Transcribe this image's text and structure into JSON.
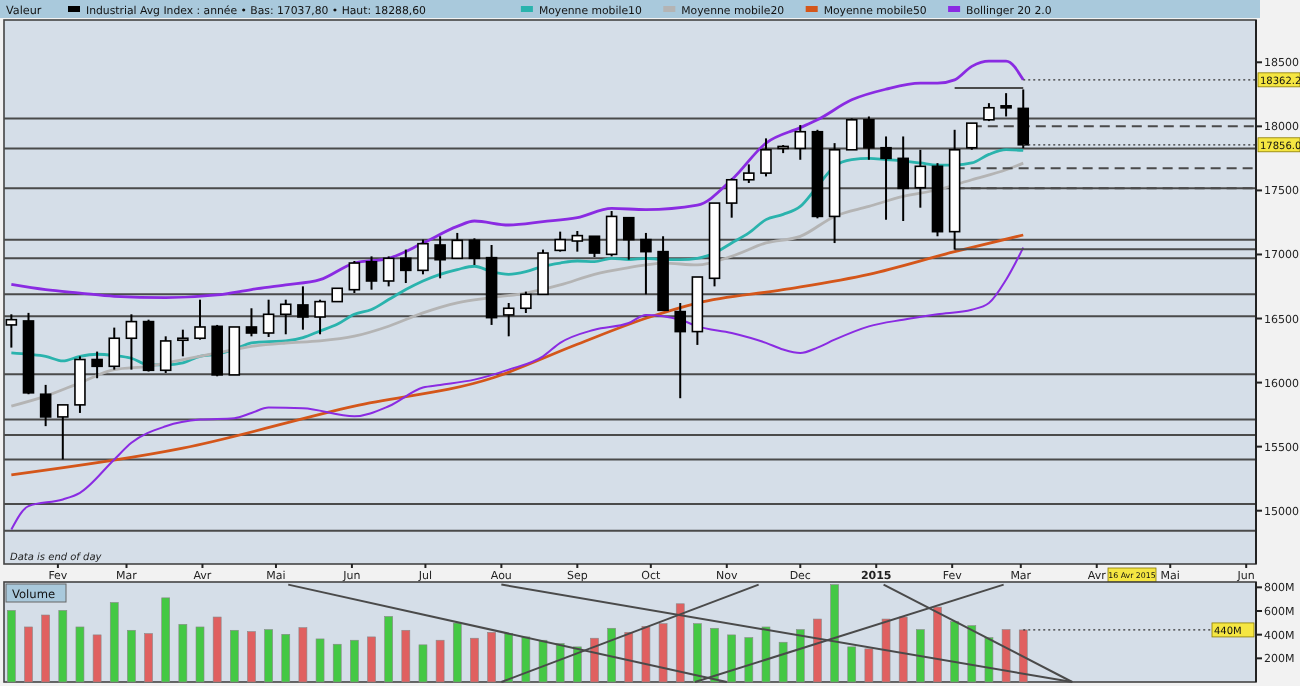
{
  "chart_data": [
    {
      "type": "candlestick",
      "title": "Valeur",
      "legend": "top",
      "x": [
        "2014-01-13",
        "2014-01-20",
        "2014-01-27",
        "2014-02-03",
        "2014-02-10",
        "2014-02-17",
        "2014-02-24",
        "2014-03-03",
        "2014-03-10",
        "2014-03-17",
        "2014-03-24",
        "2014-03-31",
        "2014-04-07",
        "2014-04-14",
        "2014-04-21",
        "2014-04-28",
        "2014-05-05",
        "2014-05-12",
        "2014-05-19",
        "2014-05-26",
        "2014-06-02",
        "2014-06-09",
        "2014-06-16",
        "2014-06-23",
        "2014-06-30",
        "2014-07-07",
        "2014-07-14",
        "2014-07-21",
        "2014-07-28",
        "2014-08-04",
        "2014-08-11",
        "2014-08-18",
        "2014-08-25",
        "2014-09-01",
        "2014-09-08",
        "2014-09-15",
        "2014-09-22",
        "2014-09-29",
        "2014-10-06",
        "2014-10-13",
        "2014-10-20",
        "2014-10-27",
        "2014-11-03",
        "2014-11-10",
        "2014-11-17",
        "2014-11-24",
        "2014-12-01",
        "2014-12-08",
        "2014-12-15",
        "2014-12-22",
        "2014-12-29",
        "2015-01-05",
        "2015-01-12",
        "2015-01-19",
        "2015-01-26",
        "2015-02-02",
        "2015-02-09",
        "2015-02-16",
        "2015-02-23",
        "2015-03-02"
      ],
      "xlim": [
        "2014-01-10",
        "2015-06-05"
      ],
      "xticks": [
        {
          "value": "2014-02-01",
          "label": "Fev"
        },
        {
          "value": "2014-03-01",
          "label": "Mar"
        },
        {
          "value": "2014-04-01",
          "label": "Avr"
        },
        {
          "value": "2014-05-01",
          "label": "Mai"
        },
        {
          "value": "2014-06-01",
          "label": "Jun"
        },
        {
          "value": "2014-07-01",
          "label": "Jul"
        },
        {
          "value": "2014-08-01",
          "label": "Aou"
        },
        {
          "value": "2014-09-01",
          "label": "Sep"
        },
        {
          "value": "2014-10-01",
          "label": "Oct"
        },
        {
          "value": "2014-11-01",
          "label": "Nov"
        },
        {
          "value": "2014-12-01",
          "label": "Dec"
        },
        {
          "value": "2015-01-01",
          "label": "2015"
        },
        {
          "value": "2015-02-01",
          "label": "Fev"
        },
        {
          "value": "2015-03-01",
          "label": "Mar"
        },
        {
          "value": "2015-04-01",
          "label": "Avr"
        },
        {
          "value": "2015-05-01",
          "label": "Mai"
        },
        {
          "value": "2015-06-01",
          "label": "Jun"
        }
      ],
      "ylim": [
        14584,
        18830
      ],
      "yticks": [
        15000,
        15500,
        16000,
        16500,
        17000,
        17500,
        18000,
        18500
      ],
      "series": [
        {
          "name": "Industrial Avg Index : année • Bas: 17037,80 • Haut: 18288,60",
          "color": "#000000",
          "ohlc": [
            [
              16450,
              16533,
              16273,
              16491
            ],
            [
              16481,
              16544,
              15909,
              15920
            ],
            [
              15909,
              15982,
              15660,
              15732
            ],
            [
              15732,
              15826,
              15400,
              15826
            ],
            [
              15826,
              16205,
              15763,
              16180
            ],
            [
              16180,
              16242,
              16034,
              16127
            ],
            [
              16127,
              16429,
              16101,
              16346
            ],
            [
              16346,
              16533,
              16101,
              16476
            ],
            [
              16476,
              16491,
              16086,
              16096
            ],
            [
              16096,
              16361,
              16075,
              16325
            ],
            [
              16335,
              16413,
              16205,
              16346
            ],
            [
              16346,
              16647,
              16335,
              16434
            ],
            [
              16439,
              16450,
              16049,
              16060
            ],
            [
              16060,
              16434,
              16060,
              16434
            ],
            [
              16434,
              16580,
              16361,
              16387
            ],
            [
              16387,
              16647,
              16356,
              16533
            ],
            [
              16533,
              16647,
              16377,
              16611
            ],
            [
              16606,
              16751,
              16413,
              16512
            ],
            [
              16512,
              16647,
              16377,
              16632
            ],
            [
              16632,
              16736,
              16632,
              16736
            ],
            [
              16725,
              16949,
              16699,
              16933
            ],
            [
              16943,
              16985,
              16725,
              16793
            ],
            [
              16793,
              16985,
              16751,
              16970
            ],
            [
              16970,
              17038,
              16777,
              16876
            ],
            [
              16876,
              17116,
              16845,
              17084
            ],
            [
              17074,
              17142,
              16814,
              16959
            ],
            [
              16970,
              17168,
              16970,
              17110
            ],
            [
              17110,
              17126,
              16918,
              16970
            ],
            [
              16975,
              17074,
              16450,
              16507
            ],
            [
              16528,
              16621,
              16361,
              16580
            ],
            [
              16580,
              16710,
              16543,
              16689
            ],
            [
              16689,
              17038,
              16689,
              17011
            ],
            [
              17032,
              17178,
              17022,
              17116
            ],
            [
              17105,
              17183,
              17022,
              17147
            ],
            [
              17142,
              17142,
              16980,
              17011
            ],
            [
              17001,
              17339,
              16985,
              17297
            ],
            [
              17287,
              17287,
              16959,
              17116
            ],
            [
              17116,
              17168,
              16689,
              17022
            ],
            [
              17022,
              17142,
              16564,
              16564
            ],
            [
              16554,
              16621,
              15878,
              16398
            ],
            [
              16398,
              16824,
              16294,
              16824
            ],
            [
              16814,
              17401,
              16751,
              17401
            ],
            [
              17401,
              17594,
              17287,
              17583
            ],
            [
              17583,
              17703,
              17558,
              17635
            ],
            [
              17635,
              17906,
              17609,
              17817
            ],
            [
              17833,
              17854,
              17791,
              17843
            ],
            [
              17828,
              18010,
              17739,
              17958
            ],
            [
              17958,
              17973,
              17282,
              17297
            ],
            [
              17297,
              17869,
              17089,
              17817
            ],
            [
              17817,
              18062,
              17817,
              18051
            ],
            [
              18051,
              18077,
              17739,
              17833
            ],
            [
              17833,
              17921,
              17271,
              17750
            ],
            [
              17750,
              17921,
              17261,
              17516
            ],
            [
              17521,
              17817,
              17365,
              17688
            ],
            [
              17688,
              17713,
              17142,
              17178
            ],
            [
              17178,
              17973,
              17038,
              17817
            ],
            [
              17833,
              18025,
              17817,
              18025
            ],
            [
              18051,
              18181,
              18041,
              18145
            ],
            [
              18160,
              18259,
              18077,
              18150
            ],
            [
              18140,
              18288,
              17830,
              17856
            ]
          ]
        },
        {
          "type": "line",
          "name": "Moyenne mobile10",
          "color": "#2ab3ad",
          "values": [
            16232,
            16221,
            16205,
            16169,
            16205,
            16221,
            16211,
            16190,
            16138,
            16138,
            16154,
            16205,
            16221,
            16258,
            16310,
            16320,
            16325,
            16351,
            16403,
            16455,
            16533,
            16570,
            16648,
            16726,
            16793,
            16845,
            16882,
            16908,
            16866,
            16845,
            16866,
            16908,
            16933,
            16949,
            16944,
            16970,
            16960,
            16970,
            16960,
            16960,
            16970,
            17012,
            17090,
            17168,
            17272,
            17313,
            17375,
            17532,
            17688,
            17740,
            17750,
            17740,
            17729,
            17714,
            17698,
            17698,
            17714,
            17781,
            17818,
            17812
          ]
        },
        {
          "type": "line",
          "name": "Moyenne mobile20",
          "color": "#b4b4b4",
          "x": [
            "2014-01-13",
            "2014-01-27",
            "2014-02-10",
            "2014-02-24",
            "2014-03-10",
            "2014-03-24",
            "2014-04-07",
            "2014-04-21",
            "2014-05-05",
            "2014-05-19",
            "2014-06-02",
            "2014-06-16",
            "2014-06-30",
            "2014-07-14",
            "2014-07-28",
            "2014-08-11",
            "2014-08-25",
            "2014-09-08",
            "2014-09-22",
            "2014-09-29",
            "2014-10-06",
            "2014-10-20",
            "2014-11-03",
            "2014-11-17",
            "2014-12-01",
            "2014-12-15",
            "2014-12-29",
            "2015-01-12",
            "2015-01-26",
            "2015-02-09",
            "2015-02-23",
            "2015-03-02"
          ],
          "values": [
            15816,
            15894,
            15998,
            16101,
            16127,
            16179,
            16231,
            16283,
            16309,
            16325,
            16362,
            16440,
            16544,
            16622,
            16663,
            16699,
            16762,
            16845,
            16897,
            16918,
            16933,
            16918,
            16986,
            17090,
            17141,
            17297,
            17375,
            17453,
            17505,
            17583,
            17661,
            17713
          ]
        },
        {
          "type": "line",
          "name": "Moyenne mobile50",
          "color": "#d4561a",
          "x": [
            "2014-01-13",
            "2014-03-24",
            "2014-06-02",
            "2014-07-28",
            "2014-09-01",
            "2014-09-29",
            "2014-10-20",
            "2014-11-24",
            "2014-12-29",
            "2015-02-02",
            "2015-03-02"
          ],
          "values": [
            15280,
            15488,
            15816,
            16034,
            16299,
            16502,
            16621,
            16725,
            16845,
            17022,
            17152
          ]
        },
        {
          "type": "line",
          "name": "Bollinger 20 2.0",
          "color": "#8a2be2",
          "x": [
            "2014-01-13",
            "2014-01-27",
            "2014-02-10",
            "2014-02-24",
            "2014-03-17",
            "2014-04-07",
            "2014-04-21",
            "2014-05-05",
            "2014-05-19",
            "2014-06-02",
            "2014-06-16",
            "2014-06-30",
            "2014-07-14",
            "2014-07-21",
            "2014-08-04",
            "2014-08-18",
            "2014-09-01",
            "2014-09-15",
            "2014-09-29",
            "2014-10-20",
            "2014-11-03",
            "2014-11-17",
            "2014-12-01",
            "2014-12-08",
            "2014-12-22",
            "2015-01-05",
            "2015-01-19",
            "2015-01-26",
            "2015-02-02",
            "2015-02-09",
            "2015-02-16",
            "2015-02-23",
            "2015-03-02"
          ],
          "values": [
            16767,
            16726,
            16699,
            16673,
            16663,
            16684,
            16726,
            16762,
            16803,
            16933,
            16970,
            17089,
            17219,
            17261,
            17230,
            17256,
            17287,
            17360,
            17350,
            17385,
            17583,
            17869,
            17990,
            18051,
            18207,
            18290,
            18337,
            18337,
            18363,
            18468,
            18509,
            18509,
            18363
          ]
        },
        {
          "type": "line",
          "color": "#8a2be2",
          "x": [
            "2014-01-13",
            "2014-01-20",
            "2014-02-03",
            "2014-02-10",
            "2014-02-24",
            "2014-03-03",
            "2014-03-17",
            "2014-03-31",
            "2014-04-14",
            "2014-04-21",
            "2014-04-28",
            "2014-05-12",
            "2014-06-02",
            "2014-06-16",
            "2014-06-30",
            "2014-07-07",
            "2014-07-21",
            "2014-08-04",
            "2014-08-18",
            "2014-08-25",
            "2014-09-08",
            "2014-09-22",
            "2014-09-29",
            "2014-10-13",
            "2014-10-20",
            "2014-11-03",
            "2014-11-17",
            "2014-11-24",
            "2014-12-01",
            "2014-12-08",
            "2014-12-15",
            "2014-12-29",
            "2015-01-12",
            "2015-01-26",
            "2015-02-09",
            "2015-02-16",
            "2015-02-23",
            "2015-03-02"
          ],
          "values": [
            14853,
            15036,
            15088,
            15140,
            15400,
            15530,
            15659,
            15711,
            15722,
            15763,
            15805,
            15800,
            15737,
            15815,
            15961,
            15981,
            16023,
            16101,
            16205,
            16310,
            16413,
            16465,
            16528,
            16491,
            16439,
            16387,
            16310,
            16258,
            16231,
            16273,
            16335,
            16439,
            16491,
            16533,
            16569,
            16621,
            16803,
            17053
          ]
        },
        {
          "type": "line",
          "color": "#4a4a4a",
          "x": [
            "2015-02-02",
            "2015-03-02"
          ],
          "values": [
            18300,
            18300
          ]
        },
        {
          "type": "line",
          "color": "#4a4a4a",
          "line_style": "dashed",
          "x": [
            "2015-02-09",
            "2015-06-05"
          ],
          "values": [
            18000,
            18000
          ]
        },
        {
          "type": "line",
          "color": "#4a4a4a",
          "line_style": "dashed",
          "x": [
            "2015-02-02",
            "2015-06-05"
          ],
          "values": [
            17672,
            17672
          ]
        },
        {
          "type": "line",
          "color": "#4a4a4a",
          "line_style": "dashed",
          "x": [
            "2015-02-02",
            "2015-06-05"
          ],
          "values": [
            17516,
            17516
          ]
        },
        {
          "type": "line",
          "color": "#4a4a4a",
          "x": [
            "2015-02-02",
            "2015-06-05"
          ],
          "values": [
            17040,
            17040
          ]
        }
      ],
      "ref_lines": [
        {
          "axis": "y",
          "value": 18062,
          "color": "#4a4a4a"
        },
        {
          "axis": "y",
          "value": 17828,
          "color": "#4a4a4a"
        },
        {
          "axis": "y",
          "value": 17516,
          "color": "#4a4a4a"
        },
        {
          "axis": "y",
          "value": 17115,
          "color": "#4a4a4a"
        },
        {
          "axis": "y",
          "value": 16970,
          "color": "#4a4a4a"
        },
        {
          "axis": "y",
          "value": 16690,
          "color": "#4a4a4a"
        },
        {
          "axis": "y",
          "value": 16518,
          "color": "#4a4a4a"
        },
        {
          "axis": "y",
          "value": 16066,
          "color": "#4a4a4a"
        },
        {
          "axis": "y",
          "value": 15712,
          "color": "#4a4a4a"
        },
        {
          "axis": "y",
          "value": 15591,
          "color": "#4a4a4a"
        },
        {
          "axis": "y",
          "value": 15400,
          "color": "#4a4a4a"
        },
        {
          "axis": "y",
          "value": 15052,
          "color": "#4a4a4a"
        },
        {
          "axis": "y",
          "value": 14843,
          "color": "#4a4a4a"
        }
      ],
      "annotations": [
        "Data is end of day",
        {
          "text": "18362.2",
          "x": "2015-03-02",
          "y": 18363
        },
        {
          "text": "17856.0",
          "x": "2015-03-02",
          "y": 17856
        },
        "16 Avr 2015"
      ]
    },
    {
      "type": "bar",
      "title": "Volume",
      "tick_labels": "y",
      "x": [
        "2014-01-13",
        "2014-01-20",
        "2014-01-27",
        "2014-02-03",
        "2014-02-10",
        "2014-02-17",
        "2014-02-24",
        "2014-03-03",
        "2014-03-10",
        "2014-03-17",
        "2014-03-24",
        "2014-03-31",
        "2014-04-07",
        "2014-04-14",
        "2014-04-21",
        "2014-04-28",
        "2014-05-05",
        "2014-05-12",
        "2014-05-19",
        "2014-05-26",
        "2014-06-02",
        "2014-06-09",
        "2014-06-16",
        "2014-06-23",
        "2014-06-30",
        "2014-07-07",
        "2014-07-14",
        "2014-07-21",
        "2014-07-28",
        "2014-08-04",
        "2014-08-11",
        "2014-08-18",
        "2014-08-25",
        "2014-09-01",
        "2014-09-08",
        "2014-09-15",
        "2014-09-22",
        "2014-09-29",
        "2014-10-06",
        "2014-10-13",
        "2014-10-20",
        "2014-10-27",
        "2014-11-03",
        "2014-11-10",
        "2014-11-17",
        "2014-11-24",
        "2014-12-01",
        "2014-12-08",
        "2014-12-15",
        "2014-12-22",
        "2014-12-29",
        "2015-01-05",
        "2015-01-12",
        "2015-01-19",
        "2015-01-26",
        "2015-02-02",
        "2015-02-09",
        "2015-02-16",
        "2015-02-23",
        "2015-03-02"
      ],
      "xlim": [
        "2014-01-10",
        "2015-06-05"
      ],
      "ylim": [
        0,
        845
      ],
      "yticks": [
        {
          "value": 200,
          "label": "200M"
        },
        {
          "value": 400,
          "label": "400M"
        },
        {
          "value": 600,
          "label": "600M"
        },
        {
          "value": 800,
          "label": "800M"
        }
      ],
      "series": [
        {
          "values": [
            605,
            465,
            566,
            605,
            465,
            398,
            672,
            437,
            409,
            711,
            487,
            465,
            549,
            437,
            426,
            443,
            403,
            459,
            364,
            319,
            353,
            381,
            554,
            437,
            314,
            353,
            498,
            370,
            420,
            409,
            381,
            353,
            325,
            297,
            370,
            454,
            420,
            470,
            493,
            661,
            493,
            454,
            398,
            375,
            465,
            336,
            443,
            532,
            823,
            297,
            280,
            532,
            549,
            443,
            633,
            510,
            476,
            375,
            443,
            440
          ],
          "colors": [
            "#44c844",
            "#e06060",
            "#e06060",
            "#44c844",
            "#44c844",
            "#e06060",
            "#44c844",
            "#44c844",
            "#e06060",
            "#44c844",
            "#44c844",
            "#44c844",
            "#e06060",
            "#44c844",
            "#e06060",
            "#44c844",
            "#44c844",
            "#e06060",
            "#44c844",
            "#44c844",
            "#44c844",
            "#e06060",
            "#44c844",
            "#e06060",
            "#44c844",
            "#e06060",
            "#44c844",
            "#e06060",
            "#e06060",
            "#44c844",
            "#44c844",
            "#44c844",
            "#44c844",
            "#44c844",
            "#e06060",
            "#44c844",
            "#e06060",
            "#e06060",
            "#e06060",
            "#e06060",
            "#44c844",
            "#44c844",
            "#44c844",
            "#44c844",
            "#44c844",
            "#44c844",
            "#44c844",
            "#e06060",
            "#44c844",
            "#44c844",
            "#e06060",
            "#e06060",
            "#e06060",
            "#44c844",
            "#e06060",
            "#44c844",
            "#44c844",
            "#44c844",
            "#e06060",
            "#e06060"
          ]
        },
        {
          "type": "line",
          "color": "#4a4a4a",
          "x": [
            "2014-05-06",
            "2014-11-01"
          ],
          "values": [
            823,
            0
          ]
        },
        {
          "type": "line",
          "color": "#4a4a4a",
          "x": [
            "2014-08-01",
            "2015-03-22"
          ],
          "values": [
            823,
            0
          ]
        },
        {
          "type": "line",
          "color": "#4a4a4a",
          "x": [
            "2015-01-04",
            "2015-03-22"
          ],
          "values": [
            823,
            0
          ]
        },
        {
          "type": "line",
          "color": "#4a4a4a",
          "x": [
            "2014-08-01",
            "2014-11-14"
          ],
          "values": [
            0,
            823
          ]
        },
        {
          "type": "line",
          "color": "#4a4a4a",
          "x": [
            "2014-10-19",
            "2015-02-22"
          ],
          "values": [
            0,
            823
          ]
        }
      ],
      "annotations": [
        {
          "text": "440M",
          "x": "2015-03-02",
          "y": 440
        }
      ]
    }
  ]
}
